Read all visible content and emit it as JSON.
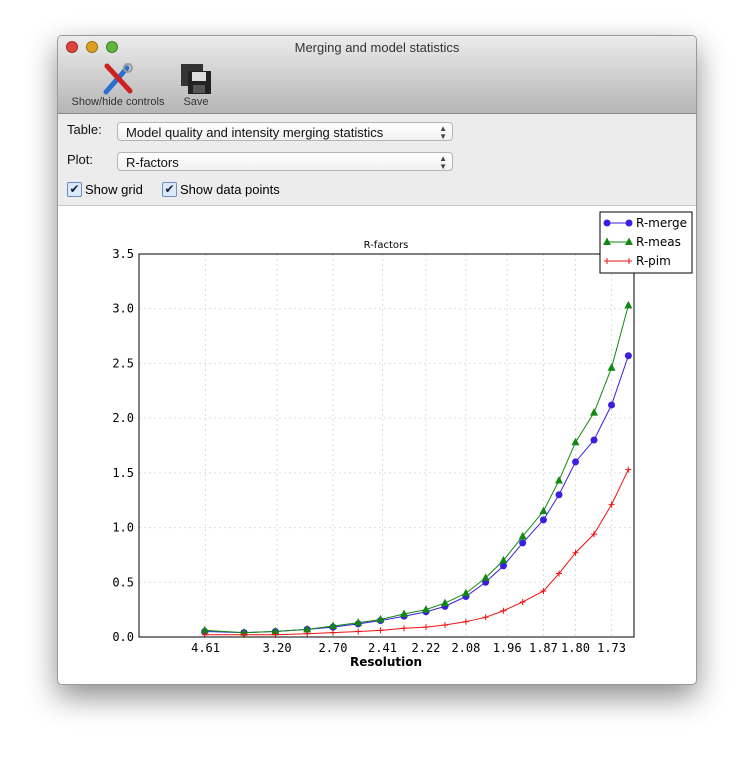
{
  "window": {
    "title": "Merging and model statistics"
  },
  "toolbar": {
    "show_hide": "Show/hide controls",
    "save": "Save"
  },
  "controls": {
    "table_label": "Table:",
    "table_value": "Model quality and intensity merging statistics",
    "plot_label": "Plot:",
    "plot_value": "R-factors",
    "show_grid": "Show grid",
    "show_grid_checked": true,
    "show_points": "Show data points",
    "show_points_checked": true
  },
  "chart_data": {
    "type": "line",
    "title": "R-factors",
    "xlabel": "Resolution",
    "ylabel": "",
    "x_scale": "reciprocal-squared (1/d^2), labels show d",
    "xlim_inv_d2": [
      0,
      0.35
    ],
    "ylim": [
      0,
      3.5
    ],
    "yticks": [
      "0.0",
      "0.5",
      "1.0",
      "1.5",
      "2.0",
      "2.5",
      "3.0",
      "3.5"
    ],
    "xticks": [
      "4.61",
      "3.20",
      "2.70",
      "2.41",
      "2.22",
      "2.08",
      "1.96",
      "1.87",
      "1.80",
      "1.73"
    ],
    "grid": true,
    "legend": "top-right",
    "x": [
      4.64,
      3.67,
      3.22,
      2.9,
      2.7,
      2.54,
      2.42,
      2.31,
      2.22,
      2.15,
      2.08,
      2.02,
      1.97,
      1.92,
      1.87,
      1.835,
      1.8,
      1.763,
      1.73,
      1.7
    ],
    "series": [
      {
        "name": "R-merge",
        "color": "#3a1fe0",
        "marker": "circle",
        "values": [
          0.05,
          0.04,
          0.05,
          0.07,
          0.09,
          0.12,
          0.15,
          0.19,
          0.23,
          0.28,
          0.37,
          0.5,
          0.65,
          0.86,
          1.07,
          1.3,
          1.6,
          1.8,
          2.12,
          2.57
        ]
      },
      {
        "name": "R-meas",
        "color": "#118811",
        "marker": "triangle",
        "values": [
          0.06,
          0.04,
          0.05,
          0.07,
          0.1,
          0.13,
          0.16,
          0.21,
          0.25,
          0.31,
          0.4,
          0.54,
          0.7,
          0.92,
          1.15,
          1.43,
          1.78,
          2.05,
          2.46,
          3.03
        ]
      },
      {
        "name": "R-pim",
        "color": "#ee1111",
        "marker": "plus",
        "values": [
          0.02,
          0.02,
          0.02,
          0.03,
          0.04,
          0.05,
          0.06,
          0.08,
          0.09,
          0.11,
          0.14,
          0.18,
          0.24,
          0.32,
          0.42,
          0.58,
          0.77,
          0.94,
          1.21,
          1.53
        ]
      }
    ]
  }
}
